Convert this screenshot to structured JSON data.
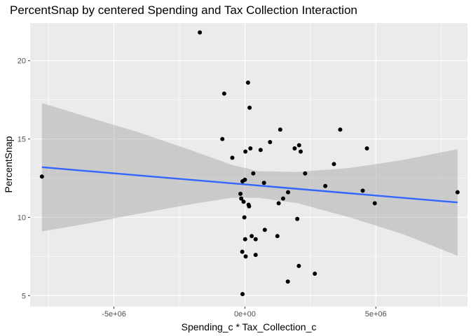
{
  "chart_data": {
    "type": "scatter",
    "title": "PercentSnap by centered Spending and Tax Collection Interaction",
    "xlabel": "Spending_c * Tax_Collection_c",
    "ylabel": "PercentSnap",
    "xlim": [
      -8200000,
      8500000
    ],
    "ylim": [
      4.3,
      22.4
    ],
    "x_ticks": [
      {
        "value": -5000000,
        "label": "-5e+06"
      },
      {
        "value": 0,
        "label": "0e+00"
      },
      {
        "value": 5000000,
        "label": "5e+06"
      }
    ],
    "y_ticks": [
      {
        "value": 5,
        "label": "5"
      },
      {
        "value": 10,
        "label": "10"
      },
      {
        "value": 15,
        "label": "15"
      },
      {
        "value": 20,
        "label": "20"
      }
    ],
    "grid": true,
    "colors": {
      "panel": "#ebebeb",
      "grid_major": "#ffffff",
      "point": "#000000",
      "fit_line": "#3366ff",
      "band": "#999999"
    },
    "points": [
      {
        "x": -7750000,
        "y": 12.6
      },
      {
        "x": -1720000,
        "y": 21.8
      },
      {
        "x": -790000,
        "y": 17.9
      },
      {
        "x": -860000,
        "y": 15.0
      },
      {
        "x": -480000,
        "y": 13.8
      },
      {
        "x": -170000,
        "y": 11.5
      },
      {
        "x": -140000,
        "y": 11.2
      },
      {
        "x": -90000,
        "y": 12.3
      },
      {
        "x": -50000,
        "y": 11.0
      },
      {
        "x": 0,
        "y": 12.4
      },
      {
        "x": 20000,
        "y": 14.2
      },
      {
        "x": 120000,
        "y": 18.6
      },
      {
        "x": 140000,
        "y": 10.8
      },
      {
        "x": 160000,
        "y": 10.7
      },
      {
        "x": 180000,
        "y": 17.0
      },
      {
        "x": 210000,
        "y": 14.4
      },
      {
        "x": 320000,
        "y": 12.8
      },
      {
        "x": 600000,
        "y": 14.3
      },
      {
        "x": 730000,
        "y": 12.2
      },
      {
        "x": 960000,
        "y": 14.8
      },
      {
        "x": 1350000,
        "y": 15.6
      },
      {
        "x": 1290000,
        "y": 10.9
      },
      {
        "x": 1460000,
        "y": 11.2
      },
      {
        "x": 1650000,
        "y": 11.6
      },
      {
        "x": 1900000,
        "y": 14.4
      },
      {
        "x": 2070000,
        "y": 14.6
      },
      {
        "x": 2130000,
        "y": 14.2
      },
      {
        "x": 2300000,
        "y": 12.8
      },
      {
        "x": 3070000,
        "y": 12.0
      },
      {
        "x": 3400000,
        "y": 13.4
      },
      {
        "x": 3640000,
        "y": 15.6
      },
      {
        "x": 4500000,
        "y": 11.7
      },
      {
        "x": 4660000,
        "y": 14.4
      },
      {
        "x": 4960000,
        "y": 10.9
      },
      {
        "x": 8120000,
        "y": 11.6
      },
      {
        "x": -20000,
        "y": 10.0
      },
      {
        "x": 10000,
        "y": 8.6
      },
      {
        "x": 260000,
        "y": 8.8
      },
      {
        "x": 410000,
        "y": 8.6
      },
      {
        "x": 760000,
        "y": 9.2
      },
      {
        "x": 1240000,
        "y": 8.8
      },
      {
        "x": 2000000,
        "y": 9.9
      },
      {
        "x": -100000,
        "y": 7.8
      },
      {
        "x": 30000,
        "y": 7.5
      },
      {
        "x": 410000,
        "y": 7.6
      },
      {
        "x": 2060000,
        "y": 6.9
      },
      {
        "x": 2670000,
        "y": 6.4
      },
      {
        "x": 1640000,
        "y": 5.9
      },
      {
        "x": -90000,
        "y": 5.1
      }
    ],
    "fit_line": {
      "x": [
        -7750000,
        8120000
      ],
      "y": [
        13.2,
        10.95
      ]
    },
    "confidence_band": [
      {
        "x": -7750000,
        "lower": 9.1,
        "upper": 17.3
      },
      {
        "x": -6000000,
        "lower": 9.6,
        "upper": 16.4
      },
      {
        "x": -4000000,
        "lower": 10.25,
        "upper": 15.4
      },
      {
        "x": -2000000,
        "lower": 10.85,
        "upper": 14.25
      },
      {
        "x": -500000,
        "lower": 11.25,
        "upper": 13.35
      },
      {
        "x": 500000,
        "lower": 11.25,
        "upper": 12.95
      },
      {
        "x": 2000000,
        "lower": 10.9,
        "upper": 12.9
      },
      {
        "x": 4000000,
        "lower": 10.0,
        "upper": 13.15
      },
      {
        "x": 6000000,
        "lower": 8.95,
        "upper": 13.65
      },
      {
        "x": 8120000,
        "lower": 7.55,
        "upper": 14.35
      }
    ]
  }
}
